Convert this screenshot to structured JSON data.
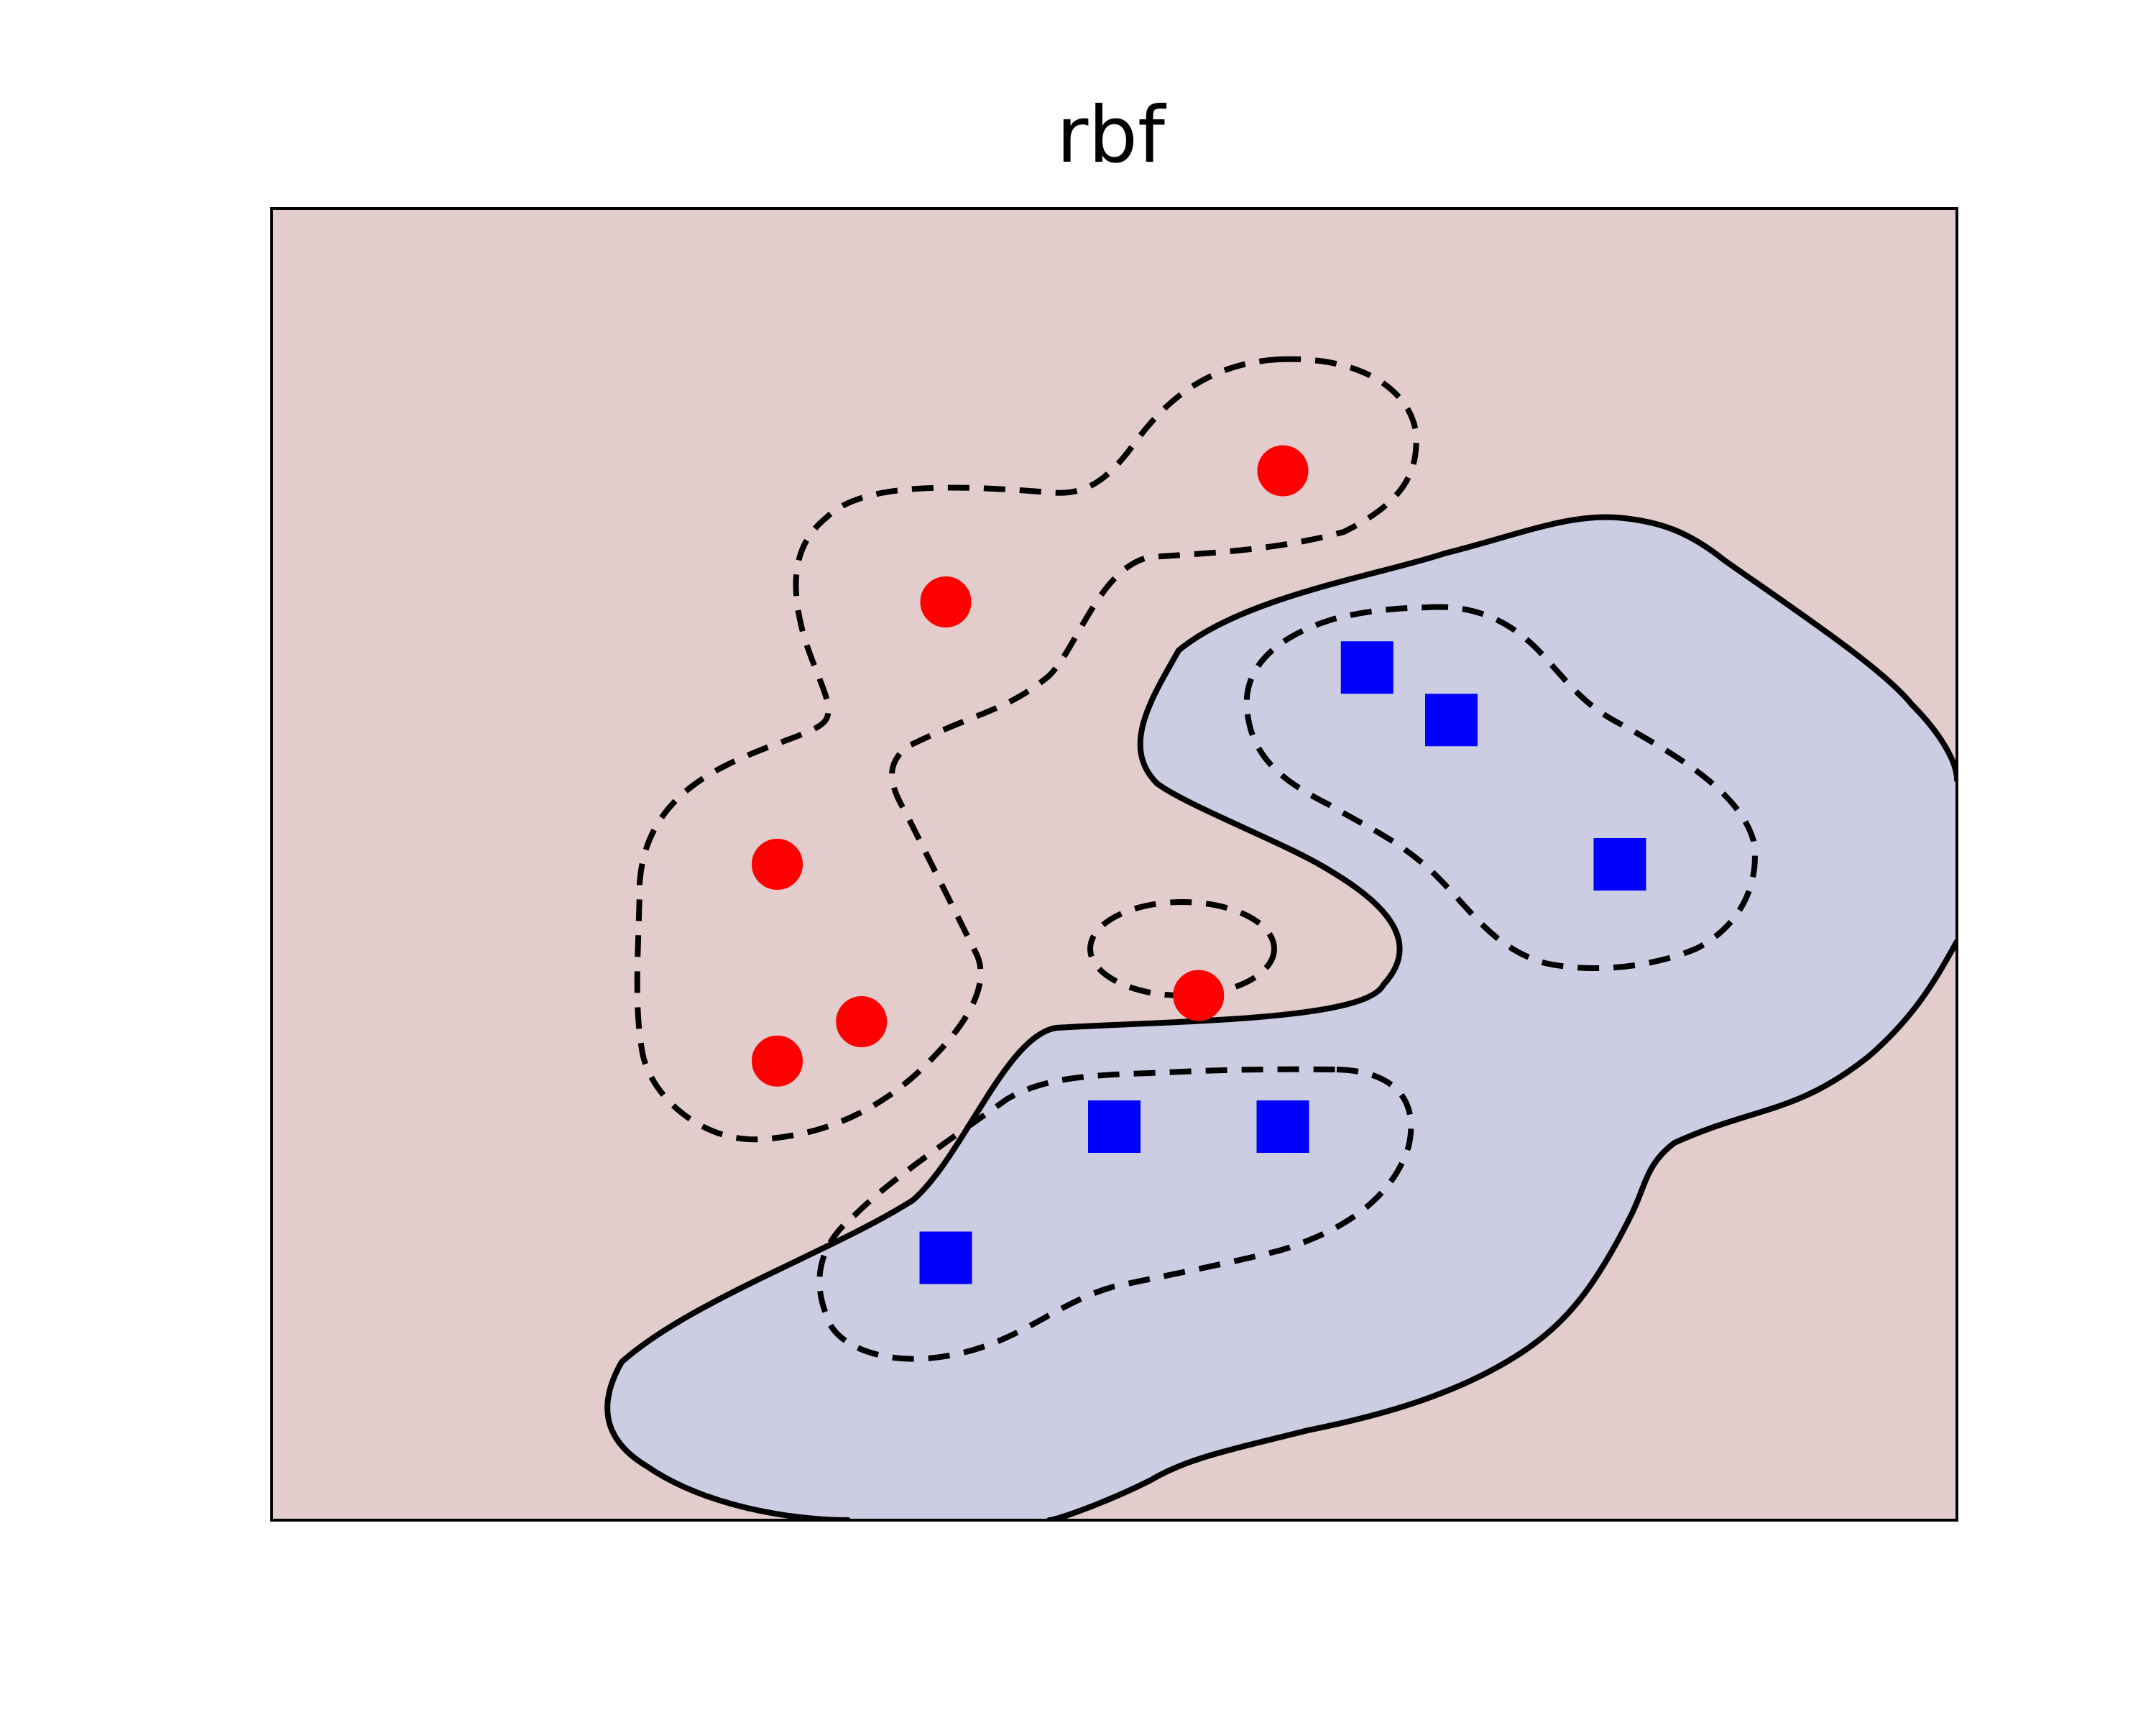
{
  "chart_data": {
    "type": "scatter",
    "title": "rbf",
    "xlabel": "",
    "ylabel": "",
    "xlim": [
      0,
      10
    ],
    "ylim": [
      0,
      10
    ],
    "grid": false,
    "ticks": false,
    "region_colors": {
      "class_0": "#e3cccc",
      "class_1": "#ccccE3"
    },
    "series": [
      {
        "marker": "circle",
        "color": "#ff0000",
        "x": [
          6.0,
          4.0,
          3.0,
          3.5,
          3.0,
          5.5
        ],
        "y": [
          8.0,
          7.0,
          5.0,
          3.8,
          3.5,
          4.0
        ]
      },
      {
        "marker": "square",
        "color": "#0000ff",
        "x": [
          6.5,
          7.0,
          8.0,
          5.0,
          6.0,
          4.0
        ],
        "y": [
          6.5,
          6.1,
          5.0,
          3.0,
          3.0,
          2.0
        ]
      }
    ]
  }
}
